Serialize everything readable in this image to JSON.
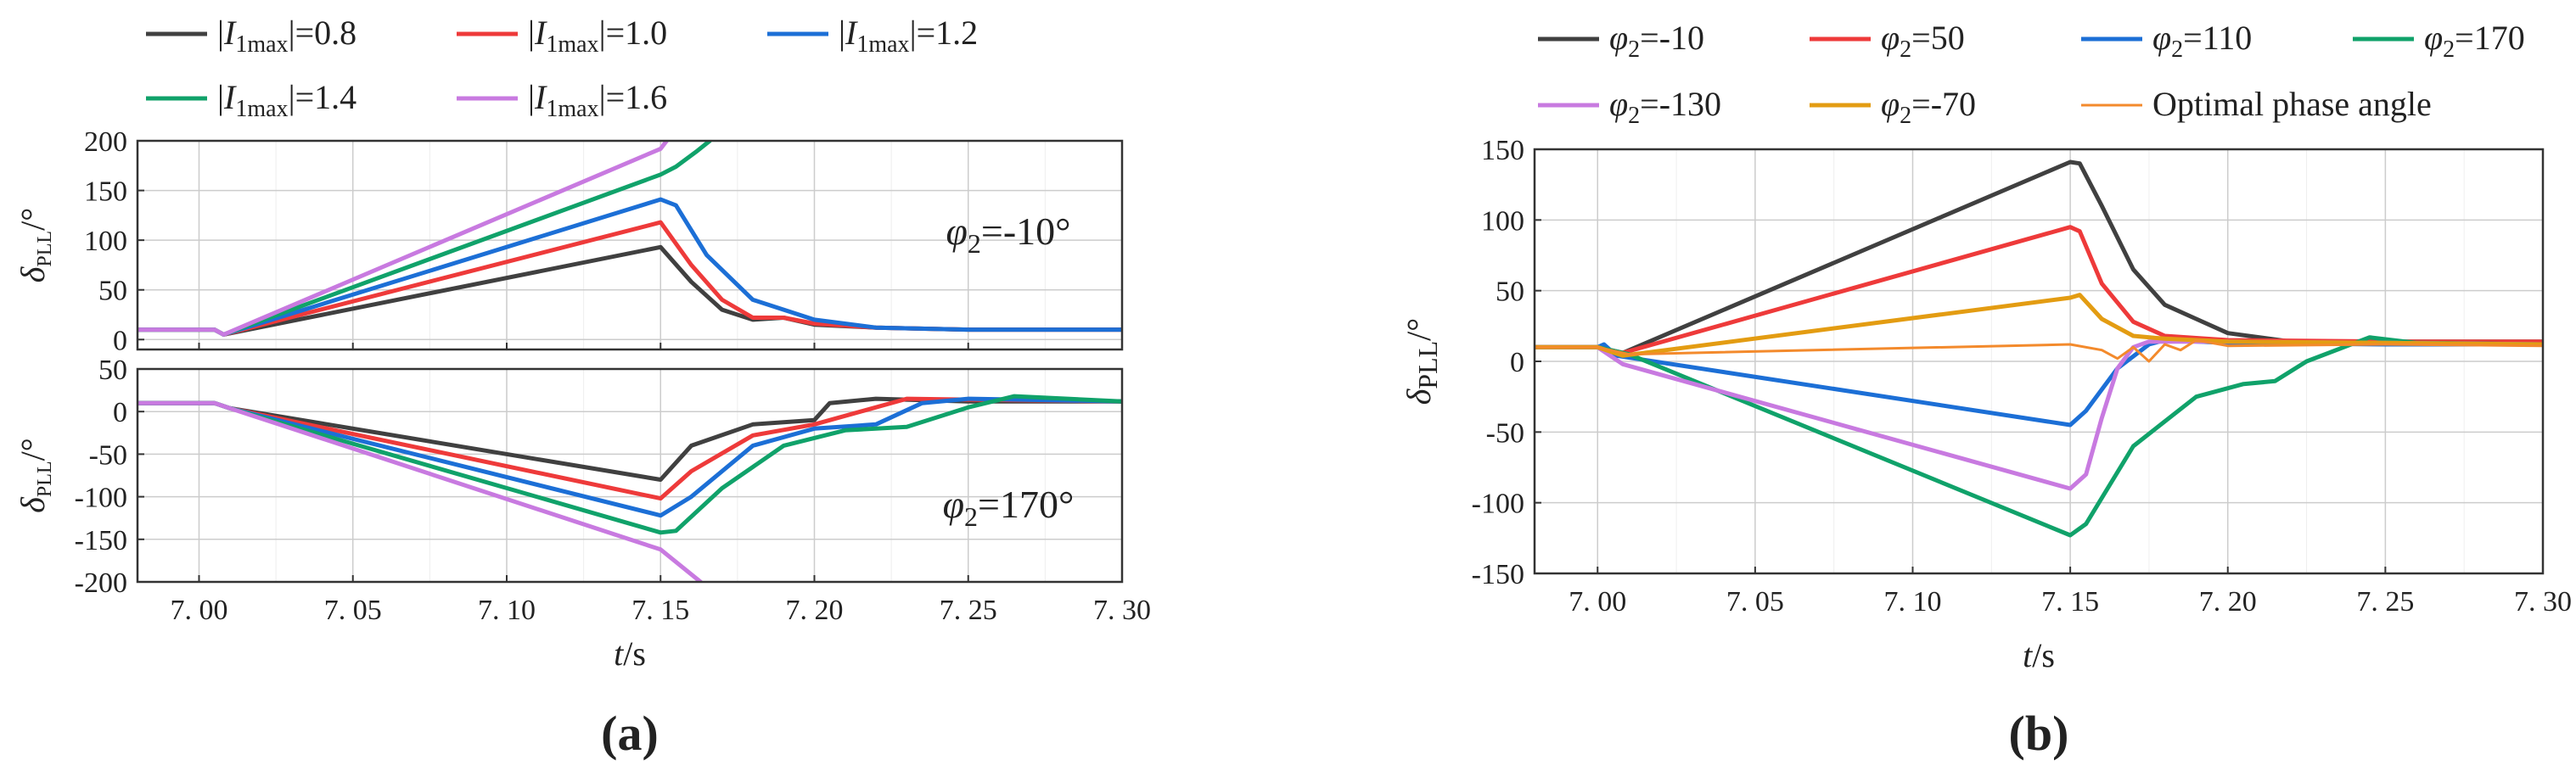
{
  "chart_data": [
    {
      "panel": "(a)",
      "type": "line",
      "x_label": "t/s",
      "x_ticks": [
        "7.00",
        "7.05",
        "7.10",
        "7.15",
        "7.20",
        "7.25",
        "7.30"
      ],
      "x_range": [
        6.98,
        7.3
      ],
      "legend": [
        {
          "name": "|I1max|=0.8",
          "color": "#404040"
        },
        {
          "name": "|I1max|=1.0",
          "color": "#ee3a3a"
        },
        {
          "name": "|I1max|=1.2",
          "color": "#1c6fd6"
        },
        {
          "name": "|I1max|=1.4",
          "color": "#10a26a"
        },
        {
          "name": "|I1max|=1.6",
          "color": "#c87ae0"
        }
      ],
      "subplots": [
        {
          "annotation": "φ2=-10°",
          "y_label": "δPLL/°",
          "y_range": [
            -10,
            200
          ],
          "y_ticks": [
            0,
            50,
            100,
            150,
            200
          ],
          "series": [
            {
              "name": "|I1max|=0.8",
              "x": [
                6.98,
                7.0,
                7.005,
                7.008,
                7.15,
                7.16,
                7.17,
                7.18,
                7.19,
                7.2,
                7.22,
                7.25,
                7.3
              ],
              "y": [
                10,
                10,
                10,
                5,
                93,
                58,
                30,
                20,
                22,
                15,
                12,
                10,
                10
              ]
            },
            {
              "name": "|I1max|=1.0",
              "x": [
                6.98,
                7.0,
                7.005,
                7.008,
                7.15,
                7.16,
                7.17,
                7.18,
                7.19,
                7.2,
                7.22,
                7.25,
                7.3
              ],
              "y": [
                10,
                10,
                10,
                5,
                118,
                75,
                40,
                22,
                22,
                16,
                12,
                10,
                10
              ]
            },
            {
              "name": "|I1max|=1.2",
              "x": [
                6.98,
                7.0,
                7.005,
                7.008,
                7.15,
                7.155,
                7.165,
                7.18,
                7.19,
                7.2,
                7.22,
                7.25,
                7.3
              ],
              "y": [
                10,
                10,
                10,
                5,
                141,
                135,
                85,
                40,
                30,
                20,
                12,
                10,
                10
              ]
            },
            {
              "name": "|I1max|=1.4",
              "x": [
                6.98,
                7.0,
                7.005,
                7.008,
                7.15,
                7.155,
                7.162,
                7.166
              ],
              "y": [
                10,
                10,
                10,
                5,
                166,
                174,
                190,
                200
              ]
            },
            {
              "name": "|I1max|=1.6",
              "x": [
                6.98,
                7.0,
                7.005,
                7.008,
                7.15,
                7.152
              ],
              "y": [
                10,
                10,
                10,
                5,
                192,
                200
              ]
            }
          ]
        },
        {
          "annotation": "φ2=170°",
          "y_label": "δPLL/°",
          "y_range": [
            -200,
            50
          ],
          "y_ticks": [
            50,
            0,
            -50,
            -100,
            -150,
            -200
          ],
          "series": [
            {
              "name": "|I1max|=0.8",
              "x": [
                6.98,
                7.0,
                7.005,
                7.01,
                7.15,
                7.16,
                7.18,
                7.2,
                7.205,
                7.22,
                7.25,
                7.3
              ],
              "y": [
                10,
                10,
                10,
                4,
                -80,
                -40,
                -15,
                -10,
                10,
                15,
                12,
                12
              ]
            },
            {
              "name": "|I1max|=1.0",
              "x": [
                6.98,
                7.0,
                7.005,
                7.01,
                7.15,
                7.16,
                7.18,
                7.2,
                7.215,
                7.23,
                7.25,
                7.3
              ],
              "y": [
                10,
                10,
                10,
                4,
                -102,
                -70,
                -28,
                -15,
                0,
                15,
                14,
                12
              ]
            },
            {
              "name": "|I1max|=1.2",
              "x": [
                6.98,
                7.0,
                7.005,
                7.01,
                7.15,
                7.16,
                7.18,
                7.2,
                7.22,
                7.235,
                7.25,
                7.3
              ],
              "y": [
                10,
                10,
                10,
                4,
                -122,
                -100,
                -40,
                -20,
                -15,
                10,
                15,
                12
              ]
            },
            {
              "name": "|I1max|=1.4",
              "x": [
                6.98,
                7.0,
                7.005,
                7.01,
                7.15,
                7.155,
                7.17,
                7.19,
                7.21,
                7.23,
                7.25,
                7.265,
                7.3
              ],
              "y": [
                10,
                10,
                10,
                4,
                -142,
                -140,
                -90,
                -40,
                -22,
                -18,
                5,
                18,
                12
              ]
            },
            {
              "name": "|I1max|=1.6",
              "x": [
                6.98,
                7.0,
                7.005,
                7.01,
                7.15,
                7.163
              ],
              "y": [
                10,
                10,
                10,
                4,
                -162,
                -200
              ]
            }
          ]
        }
      ]
    },
    {
      "panel": "(b)",
      "type": "line",
      "x_label": "t/s",
      "y_label": "δPLL/°",
      "x_ticks": [
        "7.00",
        "7.05",
        "7.10",
        "7.15",
        "7.20",
        "7.25",
        "7.30"
      ],
      "x_range": [
        6.98,
        7.3
      ],
      "y_range": [
        -150,
        150
      ],
      "y_ticks": [
        150,
        100,
        50,
        0,
        -50,
        -100,
        -150
      ],
      "legend": [
        {
          "name": "φ2=-10",
          "color": "#404040"
        },
        {
          "name": "φ2=50",
          "color": "#ee3a3a"
        },
        {
          "name": "φ2=110",
          "color": "#1c6fd6"
        },
        {
          "name": "φ2=170",
          "color": "#10a26a"
        },
        {
          "name": "φ2=-130",
          "color": "#c87ae0"
        },
        {
          "name": "φ2=-70",
          "color": "#e39c12"
        },
        {
          "name": "Optimal phase angle",
          "color": "#f38a2c"
        }
      ],
      "series": [
        {
          "name": "φ2=-10",
          "x": [
            6.98,
            7.0,
            7.008,
            7.15,
            7.153,
            7.16,
            7.17,
            7.18,
            7.19,
            7.2,
            7.22,
            7.25,
            7.3
          ],
          "y": [
            10,
            10,
            6,
            141,
            140,
            110,
            65,
            40,
            30,
            20,
            14,
            14,
            14
          ]
        },
        {
          "name": "φ2=50",
          "x": [
            6.98,
            7.0,
            7.008,
            7.15,
            7.153,
            7.16,
            7.17,
            7.18,
            7.2,
            7.25,
            7.3
          ],
          "y": [
            10,
            10,
            6,
            95,
            92,
            55,
            28,
            18,
            15,
            14,
            14
          ]
        },
        {
          "name": "φ2=110",
          "x": [
            6.98,
            7.0,
            7.002,
            7.006,
            7.15,
            7.155,
            7.165,
            7.175,
            7.18,
            7.2,
            7.25,
            7.3
          ],
          "y": [
            10,
            10,
            12,
            4,
            -45,
            -35,
            -5,
            12,
            15,
            13,
            12,
            12
          ]
        },
        {
          "name": "φ2=170",
          "x": [
            6.98,
            7.0,
            7.01,
            7.15,
            7.155,
            7.17,
            7.19,
            7.205,
            7.215,
            7.225,
            7.245,
            7.26,
            7.3
          ],
          "y": [
            10,
            10,
            5,
            -123,
            -115,
            -60,
            -25,
            -16,
            -14,
            0,
            17,
            13,
            12
          ]
        },
        {
          "name": "φ2=-130",
          "x": [
            6.98,
            7.0,
            7.008,
            7.15,
            7.155,
            7.16,
            7.165,
            7.17,
            7.175,
            7.2,
            7.25,
            7.3
          ],
          "y": [
            10,
            10,
            -2,
            -90,
            -80,
            -40,
            -5,
            10,
            14,
            14,
            13,
            12
          ]
        },
        {
          "name": "φ2=-70",
          "x": [
            6.98,
            7.0,
            7.008,
            7.15,
            7.153,
            7.16,
            7.17,
            7.18,
            7.2,
            7.25,
            7.3
          ],
          "y": [
            10,
            10,
            4,
            45,
            47,
            30,
            18,
            16,
            14,
            13,
            12
          ]
        },
        {
          "name": "Optimal phase angle",
          "x": [
            6.98,
            7.0,
            7.01,
            7.15,
            7.16,
            7.165,
            7.17,
            7.175,
            7.18,
            7.185,
            7.19,
            7.2,
            7.25,
            7.3
          ],
          "y": [
            10,
            10,
            5,
            12,
            8,
            2,
            10,
            0,
            12,
            8,
            15,
            11,
            12,
            11
          ]
        }
      ]
    }
  ]
}
